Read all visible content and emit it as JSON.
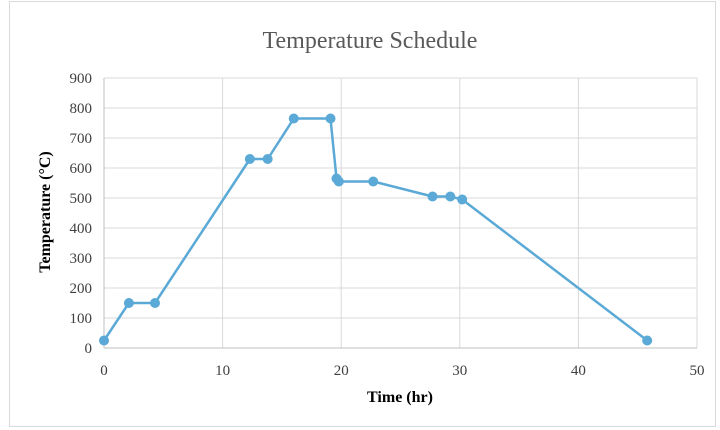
{
  "chart_data": {
    "type": "scatter",
    "title": "Temperature Schedule",
    "xlabel": "Time (hr)",
    "ylabel": "Temperature (°C)",
    "xlim": [
      0,
      50
    ],
    "ylim": [
      0,
      900
    ],
    "xticks": [
      0,
      10,
      20,
      30,
      40,
      50
    ],
    "yticks": [
      0,
      100,
      200,
      300,
      400,
      500,
      600,
      700,
      800,
      900
    ],
    "grid": true,
    "series": [
      {
        "color": "#5aa9d6",
        "x": [
          0,
          2.1,
          4.3,
          12.3,
          13.8,
          16.0,
          19.1,
          19.6,
          19.8,
          22.7,
          27.7,
          29.2,
          30.2,
          45.8
        ],
        "y": [
          25,
          150,
          150,
          630,
          630,
          765,
          765,
          565,
          555,
          555,
          505,
          505,
          495,
          25
        ]
      }
    ]
  }
}
